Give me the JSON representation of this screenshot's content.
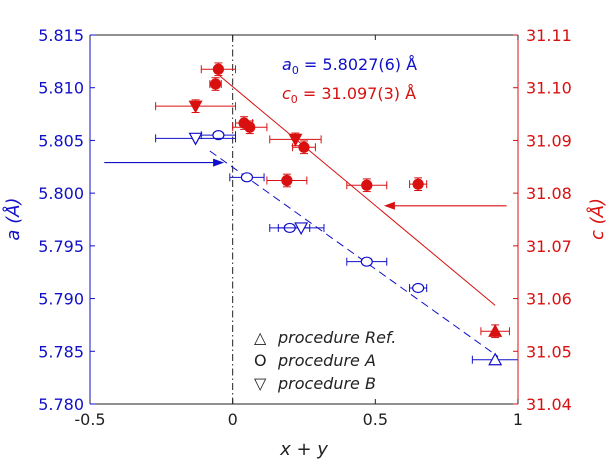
{
  "chart_data": {
    "type": "scatter",
    "xlabel": "x + y",
    "ylabel_left": "a (Å)",
    "ylabel_right": "c (Å)",
    "xlim": [
      -0.5,
      1.0
    ],
    "ylim_left": [
      5.78,
      5.815
    ],
    "ylim_right": [
      31.04,
      31.11
    ],
    "x_ticks": [
      "-0.5",
      "0",
      "0.5",
      "1"
    ],
    "x_tick_values": [
      -0.5,
      0,
      0.5,
      1
    ],
    "left_ticks": [
      "5.780",
      "5.785",
      "5.790",
      "5.795",
      "5.800",
      "5.805",
      "5.810",
      "5.815"
    ],
    "left_tick_values": [
      5.78,
      5.785,
      5.79,
      5.795,
      5.8,
      5.805,
      5.81,
      5.815
    ],
    "right_ticks": [
      "31.04",
      "31.05",
      "31.06",
      "31.07",
      "31.08",
      "31.09",
      "31.10",
      "31.11"
    ],
    "right_tick_values": [
      31.04,
      31.05,
      31.06,
      31.07,
      31.08,
      31.09,
      31.1,
      31.11
    ],
    "annotations": {
      "a0_text": "a",
      "a0_sub": "0",
      "a0_value": " = 5.8027(6) Å",
      "c0_text": "c",
      "c0_sub": "0",
      "c0_value": " = 31.097(3) Å"
    },
    "legend": [
      {
        "symbol": "△",
        "label": "procedure Ref."
      },
      {
        "symbol": "O",
        "label": "procedure A"
      },
      {
        "symbol": "▽",
        "label": "procedure B"
      }
    ],
    "colors": {
      "a_series": "#1010c8",
      "c_series": "#d81010",
      "axis": "#222222"
    },
    "series": [
      {
        "name": "a procedure A",
        "axis": "left",
        "marker": "circle",
        "filled": false,
        "points": [
          {
            "x": -0.05,
            "y": 5.8055,
            "xerr": 0.06
          },
          {
            "x": 0.05,
            "y": 5.8015,
            "xerr": 0.06
          },
          {
            "x": 0.2,
            "y": 5.7967,
            "xerr": 0.07
          },
          {
            "x": 0.47,
            "y": 5.7935,
            "xerr": 0.07
          },
          {
            "x": 0.65,
            "y": 5.791,
            "xerr": 0.03
          }
        ]
      },
      {
        "name": "a procedure B",
        "axis": "left",
        "marker": "triangle-down",
        "filled": false,
        "points": [
          {
            "x": -0.13,
            "y": 5.8052,
            "xerr": 0.14
          },
          {
            "x": 0.24,
            "y": 5.7967,
            "xerr": 0.08
          }
        ]
      },
      {
        "name": "a procedure Ref.",
        "axis": "left",
        "marker": "triangle-up",
        "filled": false,
        "points": [
          {
            "x": 0.92,
            "y": 5.7842,
            "xerr": 0.08
          }
        ]
      },
      {
        "name": "c procedure A",
        "axis": "right",
        "marker": "circle",
        "filled": true,
        "points": [
          {
            "x": -0.05,
            "y": 31.1035,
            "xerr": 0.06,
            "yerr": 0.0012
          },
          {
            "x": -0.06,
            "y": 31.1007,
            "xerr": 0.02,
            "yerr": 0.0012
          },
          {
            "x": 0.04,
            "y": 31.0933,
            "xerr": 0.03,
            "yerr": 0.0012
          },
          {
            "x": 0.06,
            "y": 31.0925,
            "xerr": 0.06,
            "yerr": 0.0012
          },
          {
            "x": 0.25,
            "y": 31.0887,
            "xerr": 0.04,
            "yerr": 0.0012
          },
          {
            "x": 0.19,
            "y": 31.0824,
            "xerr": 0.07,
            "yerr": 0.0012
          },
          {
            "x": 0.47,
            "y": 31.0815,
            "xerr": 0.07,
            "yerr": 0.0012
          },
          {
            "x": 0.65,
            "y": 31.0817,
            "xerr": 0.03,
            "yerr": 0.0012
          }
        ]
      },
      {
        "name": "c procedure B",
        "axis": "right",
        "marker": "triangle-down",
        "filled": true,
        "points": [
          {
            "x": -0.13,
            "y": 31.0965,
            "xerr": 0.14,
            "yerr": 0.0012
          },
          {
            "x": 0.22,
            "y": 31.0902,
            "xerr": 0.09,
            "yerr": 0.0012
          }
        ]
      },
      {
        "name": "c procedure Ref.",
        "axis": "right",
        "marker": "triangle-up",
        "filled": true,
        "points": [
          {
            "x": 0.92,
            "y": 31.0538,
            "xerr": 0.05,
            "yerr": 0.0012
          }
        ]
      }
    ],
    "fit_lines": [
      {
        "name": "a linear fit",
        "axis": "left",
        "style": "dashed",
        "x": [
          -0.08,
          0.93
        ],
        "y": [
          5.804,
          5.7845
        ]
      },
      {
        "name": "c linear fit",
        "axis": "right",
        "style": "solid",
        "x": [
          -0.06,
          0.92
        ],
        "y": [
          31.1029,
          31.0587
        ]
      }
    ],
    "vertical_line": {
      "x": 0,
      "style": "dash-dot"
    },
    "arrows": [
      {
        "name": "a0-arrow",
        "axis": "left",
        "from_x": -0.45,
        "to_x": -0.03,
        "y": 5.8029
      },
      {
        "name": "c0-arrow",
        "axis": "right",
        "from_x": 0.96,
        "to_x": 0.53,
        "y": 31.0776
      }
    ]
  }
}
